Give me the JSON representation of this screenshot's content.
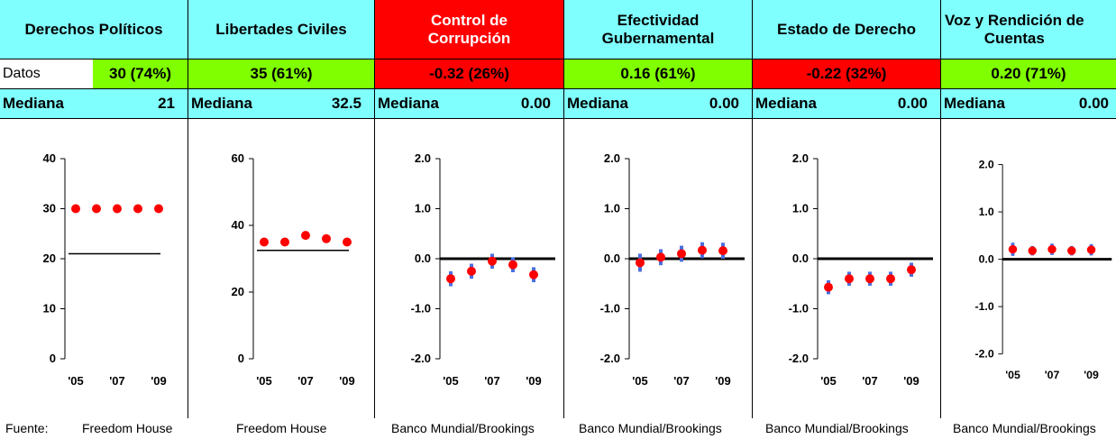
{
  "source_label": "Fuente:",
  "colors": {
    "header_blue": "#80ffff",
    "header_red": "#ff0000",
    "datos_green": "#80ff00",
    "datos_red": "#ff0000",
    "point": "#ff0000",
    "error_bar": "#4a6fe0"
  },
  "chart_data": [
    {
      "type": "scatter",
      "title": "Derechos Políticos",
      "datos_label": "Datos",
      "datos_value": "30 (74%)",
      "median_label": "Mediana",
      "median_value": "21",
      "header_color": "#80ffff",
      "datos_color": "#80ff00",
      "source": "Freedom House",
      "ylim": [
        0,
        40
      ],
      "yticks": [
        "0",
        "10",
        "20",
        "30",
        "40"
      ],
      "xticks": [
        "'05",
        "'07",
        "'09"
      ],
      "x": [
        2005,
        2006,
        2007,
        2008,
        2009
      ],
      "values": [
        30,
        30,
        30,
        30,
        30
      ],
      "median_line": 21,
      "error_bars": false
    },
    {
      "type": "scatter",
      "title": "Libertades Civiles",
      "datos_value": "35 (61%)",
      "median_label": "Mediana",
      "median_value": "32.5",
      "header_color": "#80ffff",
      "datos_color": "#80ff00",
      "source": "Freedom House",
      "ylim": [
        0,
        60
      ],
      "yticks": [
        "0",
        "20",
        "40",
        "60"
      ],
      "xticks": [
        "'05",
        "'07",
        "'09"
      ],
      "x": [
        2005,
        2006,
        2007,
        2008,
        2009
      ],
      "values": [
        35,
        35,
        37,
        36,
        35
      ],
      "median_line": 32.5,
      "error_bars": false
    },
    {
      "type": "scatter",
      "title": "Control de Corrupción",
      "title_lines": [
        "Control de",
        "Corrupción"
      ],
      "datos_value": "-0.32 (26%)",
      "median_label": "Mediana",
      "median_value": "0.00",
      "header_color": "#ff0000",
      "datos_color": "#ff0000",
      "source": "Banco Mundial/Brookings",
      "ylim": [
        -2,
        2
      ],
      "yticks": [
        "-2.0",
        "-1.0",
        "0.0",
        "1.0",
        "2.0"
      ],
      "xticks": [
        "'05",
        "'07",
        "'09"
      ],
      "x": [
        2005,
        2006,
        2007,
        2008,
        2009
      ],
      "values": [
        -0.4,
        -0.25,
        -0.05,
        -0.12,
        -0.32
      ],
      "error": [
        0.15,
        0.15,
        0.15,
        0.15,
        0.15
      ],
      "median_line": 0,
      "error_bars": true
    },
    {
      "type": "scatter",
      "title": "Efectividad Gubernamental",
      "title_lines": [
        "Efectividad",
        "Gubernamental"
      ],
      "datos_value": "0.16 (61%)",
      "median_label": "Mediana",
      "median_value": "0.00",
      "header_color": "#80ffff",
      "datos_color": "#80ff00",
      "source": "Banco Mundial/Brookings",
      "ylim": [
        -2,
        2
      ],
      "yticks": [
        "-2.0",
        "-1.0",
        "0.0",
        "1.0",
        "2.0"
      ],
      "xticks": [
        "'05",
        "'07",
        "'09"
      ],
      "x": [
        2005,
        2006,
        2007,
        2008,
        2009
      ],
      "values": [
        -0.08,
        0.03,
        0.1,
        0.17,
        0.16
      ],
      "error": [
        0.18,
        0.16,
        0.16,
        0.16,
        0.16
      ],
      "median_line": 0,
      "error_bars": true
    },
    {
      "type": "scatter",
      "title": "Estado de Derecho",
      "datos_value": "-0.22 (32%)",
      "median_label": "Mediana",
      "median_value": "0.00",
      "header_color": "#80ffff",
      "datos_color": "#ff0000",
      "source": "Banco Mundial/Brookings",
      "ylim": [
        -2,
        2
      ],
      "yticks": [
        "-2.0",
        "-1.0",
        "0.0",
        "1.0",
        "2.0"
      ],
      "xticks": [
        "'05",
        "'07",
        "'09"
      ],
      "x": [
        2005,
        2006,
        2007,
        2008,
        2009
      ],
      "values": [
        -0.57,
        -0.4,
        -0.4,
        -0.4,
        -0.22
      ],
      "error": [
        0.14,
        0.14,
        0.14,
        0.14,
        0.14
      ],
      "median_line": 0,
      "error_bars": true
    },
    {
      "type": "scatter",
      "title": "Voz y Rendición de Cuentas",
      "title_lines": [
        "Voz y Rendición de",
        "Cuentas"
      ],
      "datos_value": "0.20 (71%)",
      "median_label": "Mediana",
      "median_value": "0.00",
      "header_color": "#80ffff",
      "datos_color": "#80ff00",
      "source": "Banco Mundial/Brookings",
      "ylim": [
        -2,
        2
      ],
      "yticks": [
        "-2.0",
        "-1.0",
        "0.0",
        "1.0",
        "2.0"
      ],
      "xticks": [
        "'05",
        "'07",
        "'09"
      ],
      "x": [
        2005,
        2006,
        2007,
        2008,
        2009
      ],
      "values": [
        0.21,
        0.18,
        0.21,
        0.18,
        0.2
      ],
      "error": [
        0.14,
        0.1,
        0.12,
        0.1,
        0.12
      ],
      "median_line": 0,
      "error_bars": true
    }
  ]
}
